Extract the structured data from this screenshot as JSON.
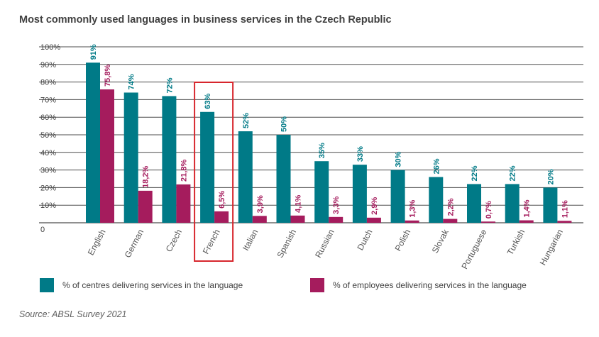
{
  "colors": {
    "centres": "#007a87",
    "employees": "#a51c5d",
    "grid": "#4d4d4d",
    "highlight": "#d7262d",
    "text": "#404040"
  },
  "chart_data": {
    "type": "bar",
    "title": "Most commonly used languages in business services in the Czech Republic",
    "categories": [
      "English",
      "German",
      "Czech",
      "French",
      "Italian",
      "Spanish",
      "Russian",
      "Dutch",
      "Polish",
      "Slovak",
      "Portuguese",
      "Turkish",
      "Hungarian"
    ],
    "series": [
      {
        "name": "% of centres delivering services in the language",
        "values": [
          91,
          74,
          72,
          63,
          52,
          50,
          35,
          33,
          30,
          26,
          22,
          22,
          20
        ],
        "labels": [
          "91%",
          "74%",
          "72%",
          "63%",
          "52%",
          "50%",
          "35%",
          "33%",
          "30%",
          "26%",
          "22%",
          "22%",
          "20%"
        ]
      },
      {
        "name": "% of employees delivering services in the language",
        "values": [
          75.8,
          18.2,
          21.8,
          6.5,
          3.9,
          4.1,
          3.3,
          2.9,
          1.3,
          2.2,
          0.7,
          1.4,
          1.1
        ],
        "labels": [
          "75,8%",
          "18,2%",
          "21,8%",
          "6,5%",
          "3,9%",
          "4,1%",
          "3,3%",
          "2,9%",
          "1,3%",
          "2,2%",
          "0,7%",
          "1,4%",
          "1,1%"
        ]
      }
    ],
    "ylim": [
      0,
      100
    ],
    "yticks": [
      "0",
      "10%",
      "20%",
      "30%",
      "40%",
      "50%",
      "60%",
      "70%",
      "80%",
      "90%",
      "100%"
    ],
    "highlighted_category": "French",
    "grid": true,
    "legend_position": "bottom",
    "source": "Source: ABSL Survey 2021"
  }
}
